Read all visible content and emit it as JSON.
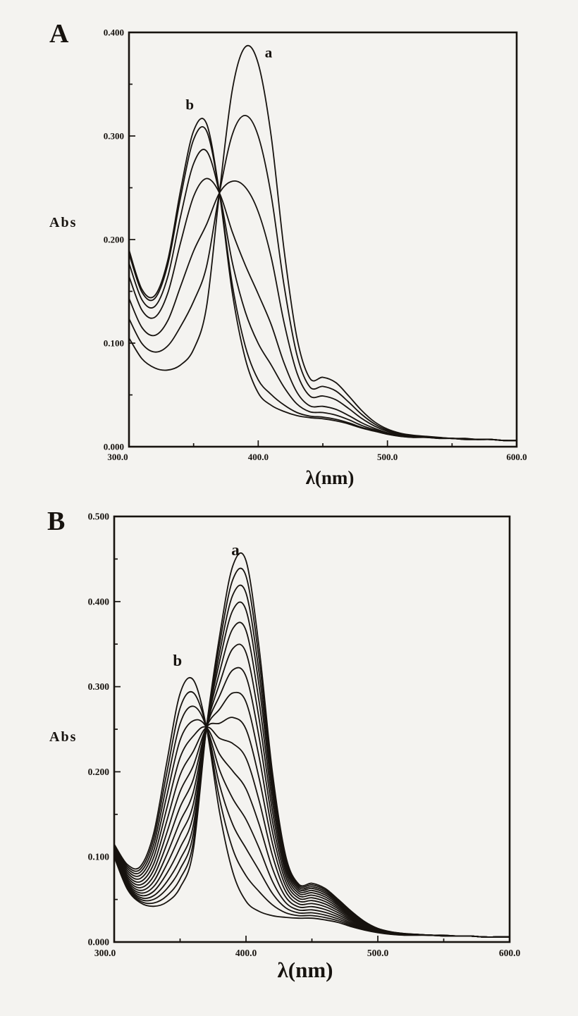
{
  "figure": {
    "kind": "scanned UV-Vis absorption spectra figure, two stacked panels",
    "background_color": "#f4f3f0",
    "ink_color": "#17130f"
  },
  "chart_data": [
    {
      "type": "line",
      "panel": "A",
      "ylabel": "Abs",
      "xlabel": "λ(nm)",
      "n_curves": 7,
      "x_axis": {
        "min": 300,
        "max": 600,
        "major_ticks": [
          300,
          400,
          500,
          600
        ],
        "minor_tick_step": 50,
        "tick_labels": [
          "300.0",
          "400.0",
          "500.0",
          "600.0"
        ]
      },
      "y_axis": {
        "min": 0.0,
        "max": 0.4,
        "major_ticks": [
          0.0,
          0.1,
          0.2,
          0.3,
          0.4
        ],
        "minor_tick_step": 0.05,
        "tick_labels": [
          "0.000",
          "0.100",
          "0.200",
          "0.300",
          "0.400"
        ]
      },
      "annotations": [
        {
          "text": "a",
          "lambda": 408,
          "abs": 0.38
        },
        {
          "text": "b",
          "lambda": 347,
          "abs": 0.33
        }
      ],
      "peaks": {
        "a": {
          "lambda": 393,
          "abs": 0.39
        },
        "b": {
          "lambda": 355,
          "abs": 0.318
        }
      },
      "isosbestic_point": {
        "lambda": 370,
        "abs": 0.245
      },
      "shoulder": {
        "lambda": 455,
        "abs_max": 0.065
      },
      "wavelengths_nm": [
        300,
        310,
        320,
        330,
        340,
        350,
        360,
        370,
        380,
        390,
        400,
        410,
        420,
        430,
        440,
        450,
        460,
        470,
        480,
        490,
        500,
        510,
        520,
        530,
        540,
        550,
        560,
        570,
        580,
        590,
        600
      ],
      "endpoint_spectra": {
        "curve_a_initial": [
          0.105,
          0.085,
          0.076,
          0.074,
          0.079,
          0.094,
          0.135,
          0.245,
          0.345,
          0.386,
          0.37,
          0.3,
          0.19,
          0.105,
          0.066,
          0.067,
          0.062,
          0.049,
          0.035,
          0.024,
          0.017,
          0.013,
          0.011,
          0.01,
          0.009,
          0.008,
          0.008,
          0.007,
          0.007,
          0.006,
          0.006
        ],
        "curve_b_final": [
          0.19,
          0.152,
          0.146,
          0.18,
          0.248,
          0.305,
          0.312,
          0.245,
          0.148,
          0.085,
          0.052,
          0.04,
          0.034,
          0.03,
          0.028,
          0.027,
          0.025,
          0.022,
          0.018,
          0.015,
          0.012,
          0.01,
          0.009,
          0.009,
          0.008,
          0.008,
          0.007,
          0.007,
          0.007,
          0.006,
          0.006
        ]
      },
      "series_fractions_of_a": [
        1.0,
        0.78,
        0.55,
        0.3,
        0.15,
        0.04,
        0.0
      ],
      "series_rule": "absorbance(λ) = f × curve_a_initial(λ) + (1 − f) × curve_b_final(λ); all curves cross at the isosbestic point"
    },
    {
      "type": "line",
      "panel": "B",
      "ylabel": "Abs",
      "xlabel": "λ(nm)",
      "n_curves": 15,
      "x_axis": {
        "min": 300,
        "max": 600,
        "major_ticks": [
          300,
          400,
          500,
          600
        ],
        "minor_tick_step": 50,
        "tick_labels": [
          "300.0",
          "400.0",
          "500.0",
          "600.0"
        ]
      },
      "y_axis": {
        "min": 0.0,
        "max": 0.5,
        "major_ticks": [
          0.0,
          0.1,
          0.2,
          0.3,
          0.4,
          0.5
        ],
        "minor_tick_step": 0.05,
        "tick_labels": [
          "0.000",
          "0.100",
          "0.200",
          "0.300",
          "0.400",
          "0.500"
        ]
      },
      "annotations": [
        {
          "text": "a",
          "lambda": 392,
          "abs": 0.46
        },
        {
          "text": "b",
          "lambda": 348,
          "abs": 0.33
        }
      ],
      "peaks": {
        "a": {
          "lambda": 395,
          "abs": 0.45
        },
        "b": {
          "lambda": 355,
          "abs": 0.315
        }
      },
      "isosbestic_point": {
        "lambda": 370,
        "abs": 0.252
      },
      "shoulder": {
        "lambda": 455,
        "abs_max": 0.065
      },
      "wavelengths_nm": [
        300,
        310,
        320,
        330,
        340,
        350,
        360,
        370,
        380,
        390,
        400,
        410,
        420,
        430,
        440,
        450,
        460,
        470,
        480,
        490,
        500,
        510,
        520,
        530,
        540,
        550,
        560,
        570,
        580,
        590,
        600
      ],
      "endpoint_spectra": {
        "curve_a_initial": [
          0.1,
          0.062,
          0.046,
          0.042,
          0.047,
          0.064,
          0.108,
          0.252,
          0.36,
          0.442,
          0.448,
          0.345,
          0.2,
          0.102,
          0.068,
          0.069,
          0.063,
          0.05,
          0.036,
          0.024,
          0.016,
          0.012,
          0.01,
          0.009,
          0.008,
          0.008,
          0.007,
          0.007,
          0.006,
          0.006,
          0.006
        ],
        "curve_b_final": [
          0.115,
          0.091,
          0.089,
          0.128,
          0.212,
          0.292,
          0.308,
          0.252,
          0.152,
          0.082,
          0.048,
          0.036,
          0.031,
          0.029,
          0.028,
          0.028,
          0.026,
          0.023,
          0.018,
          0.014,
          0.011,
          0.009,
          0.008,
          0.008,
          0.008,
          0.007,
          0.007,
          0.007,
          0.006,
          0.006,
          0.006
        ]
      },
      "series_fractions_of_a": [
        1.0,
        0.955,
        0.905,
        0.855,
        0.795,
        0.73,
        0.66,
        0.585,
        0.505,
        0.42,
        0.33,
        0.24,
        0.155,
        0.075,
        0.0
      ],
      "series_rule": "absorbance(λ) = f × curve_a_initial(λ) + (1 − f) × curve_b_final(λ); all curves cross at the isosbestic point"
    }
  ]
}
